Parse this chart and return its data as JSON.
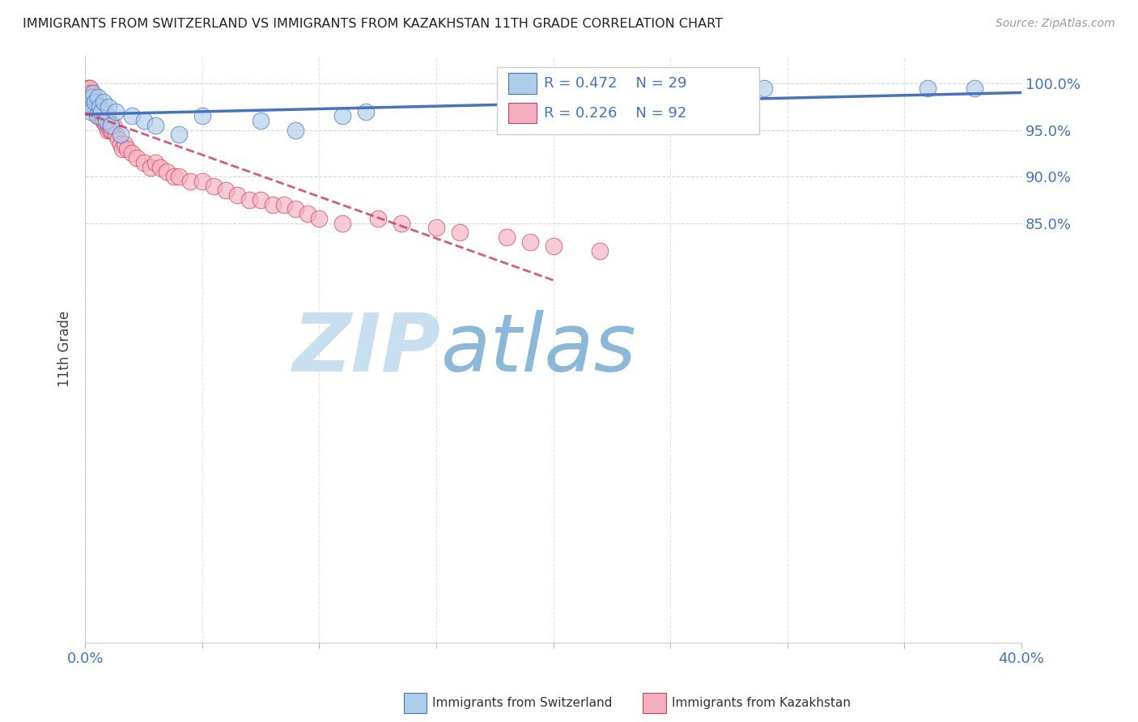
{
  "title": "IMMIGRANTS FROM SWITZERLAND VS IMMIGRANTS FROM KAZAKHSTAN 11TH GRADE CORRELATION CHART",
  "source": "Source: ZipAtlas.com",
  "ylabel": "11th Grade",
  "xlim": [
    0.0,
    40.0
  ],
  "ylim": [
    40.0,
    103.0
  ],
  "yticks": [
    85.0,
    90.0,
    95.0,
    100.0
  ],
  "ytick_labels": [
    "85.0%",
    "90.0%",
    "95.0%",
    "100.0%"
  ],
  "xticks": [
    0.0,
    5.0,
    10.0,
    15.0,
    20.0,
    25.0,
    30.0,
    35.0,
    40.0
  ],
  "legend_r1": "R = 0.472",
  "legend_n1": "N = 29",
  "legend_r2": "R = 0.226",
  "legend_n2": "N = 92",
  "legend_label1": "Immigrants from Switzerland",
  "legend_label2": "Immigrants from Kazakhstan",
  "color_switzerland": "#aecde8",
  "color_kazakhstan": "#f4b0c0",
  "trend_color_switzerland": "#4472c4",
  "trend_color_kazakhstan": "#d04060",
  "watermark_zip": "ZIP",
  "watermark_atlas": "atlas",
  "watermark_color_zip": "#c8dff0",
  "watermark_color_atlas": "#8ab8d8",
  "title_color": "#222222",
  "axis_label_color": "#4472c4",
  "swiss_x": [
    0.15,
    0.2,
    0.25,
    0.3,
    0.35,
    0.4,
    0.5,
    0.55,
    0.6,
    0.7,
    0.8,
    0.9,
    1.0,
    1.1,
    1.3,
    1.5,
    2.0,
    2.5,
    3.0,
    4.0,
    5.0,
    7.5,
    9.0,
    11.0,
    12.0,
    22.0,
    29.0,
    36.0,
    38.0
  ],
  "swiss_y": [
    97.5,
    98.0,
    97.0,
    98.5,
    99.0,
    98.0,
    96.5,
    98.5,
    97.5,
    97.0,
    98.0,
    96.0,
    97.5,
    95.5,
    97.0,
    94.5,
    96.5,
    96.0,
    95.5,
    94.5,
    96.5,
    96.0,
    95.0,
    96.5,
    97.0,
    97.0,
    99.5,
    99.5,
    99.5
  ],
  "kaz_x": [
    0.05,
    0.05,
    0.07,
    0.08,
    0.1,
    0.1,
    0.12,
    0.12,
    0.15,
    0.15,
    0.15,
    0.17,
    0.18,
    0.18,
    0.2,
    0.2,
    0.22,
    0.22,
    0.25,
    0.25,
    0.27,
    0.28,
    0.3,
    0.3,
    0.32,
    0.35,
    0.37,
    0.4,
    0.42,
    0.45,
    0.48,
    0.5,
    0.52,
    0.55,
    0.58,
    0.6,
    0.62,
    0.65,
    0.68,
    0.7,
    0.72,
    0.75,
    0.78,
    0.8,
    0.83,
    0.85,
    0.88,
    0.9,
    0.93,
    0.95,
    0.98,
    1.0,
    1.05,
    1.1,
    1.15,
    1.2,
    1.3,
    1.4,
    1.5,
    1.6,
    1.7,
    1.8,
    2.0,
    2.2,
    2.5,
    2.8,
    3.0,
    3.2,
    3.5,
    3.8,
    4.0,
    4.5,
    5.0,
    5.5,
    6.0,
    6.5,
    7.0,
    7.5,
    8.0,
    8.5,
    9.0,
    9.5,
    10.0,
    11.0,
    12.5,
    13.5,
    15.0,
    16.0,
    18.0,
    19.0,
    20.0,
    22.0
  ],
  "kaz_y": [
    98.5,
    99.0,
    98.0,
    97.5,
    99.0,
    98.5,
    99.5,
    98.0,
    98.5,
    99.0,
    97.5,
    98.0,
    99.5,
    97.5,
    99.5,
    98.5,
    98.5,
    97.5,
    99.0,
    98.0,
    98.5,
    97.5,
    98.5,
    97.5,
    98.0,
    97.5,
    98.5,
    97.5,
    98.0,
    97.0,
    98.0,
    97.5,
    97.0,
    96.5,
    97.5,
    96.5,
    97.0,
    96.5,
    97.5,
    96.5,
    97.0,
    96.0,
    96.5,
    96.0,
    97.0,
    96.5,
    96.0,
    95.5,
    96.5,
    95.0,
    96.0,
    95.5,
    95.0,
    95.5,
    95.0,
    95.5,
    94.5,
    94.0,
    93.5,
    93.0,
    93.5,
    93.0,
    92.5,
    92.0,
    91.5,
    91.0,
    91.5,
    91.0,
    90.5,
    90.0,
    90.0,
    89.5,
    89.5,
    89.0,
    88.5,
    88.0,
    87.5,
    87.5,
    87.0,
    87.0,
    86.5,
    86.0,
    85.5,
    85.0,
    85.5,
    85.0,
    84.5,
    84.0,
    83.5,
    83.0,
    82.5,
    82.0
  ]
}
